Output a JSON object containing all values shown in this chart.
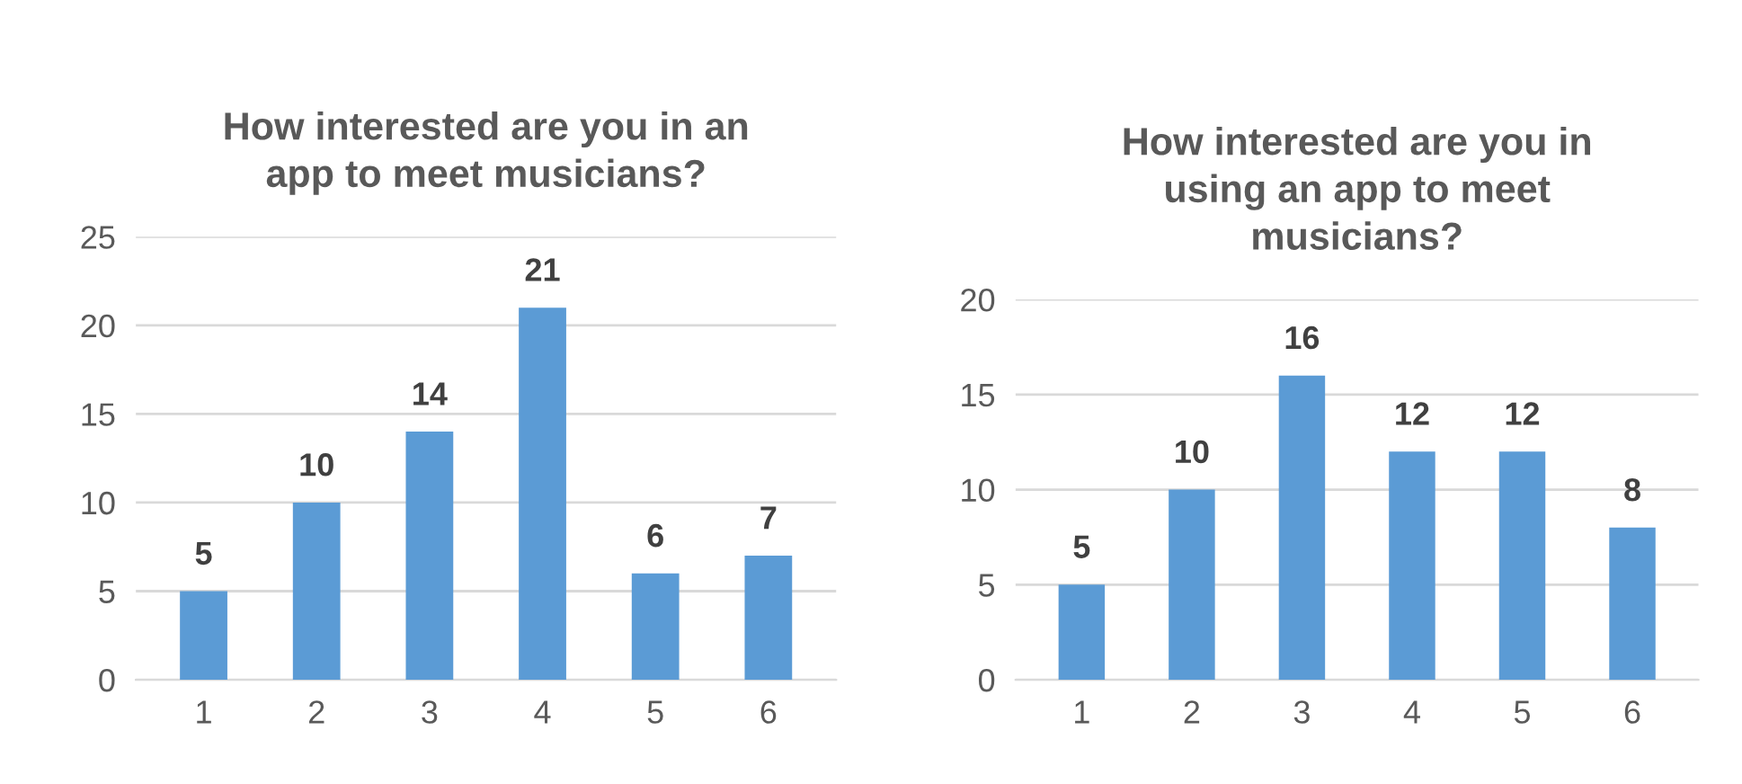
{
  "chart_data": [
    {
      "type": "bar",
      "title": "How interested are you in an\napp to meet musicians?",
      "categories": [
        "1",
        "2",
        "3",
        "4",
        "5",
        "6"
      ],
      "values": [
        5,
        10,
        14,
        21,
        6,
        7
      ],
      "color": "#5b9bd5",
      "ylim": [
        0,
        25
      ],
      "yticks": [
        0,
        5,
        10,
        15,
        20,
        25
      ],
      "grid": "y",
      "data_labels": true,
      "legend": false
    },
    {
      "type": "bar",
      "title": "How interested are you in\nusing an app to meet\nmusicians?",
      "categories": [
        "1",
        "2",
        "3",
        "4",
        "5",
        "6"
      ],
      "values": [
        5,
        10,
        16,
        12,
        12,
        8
      ],
      "color": "#5b9bd5",
      "ylim": [
        0,
        20
      ],
      "yticks": [
        0,
        5,
        10,
        15,
        20
      ],
      "grid": "y",
      "data_labels": true,
      "legend": false
    }
  ]
}
